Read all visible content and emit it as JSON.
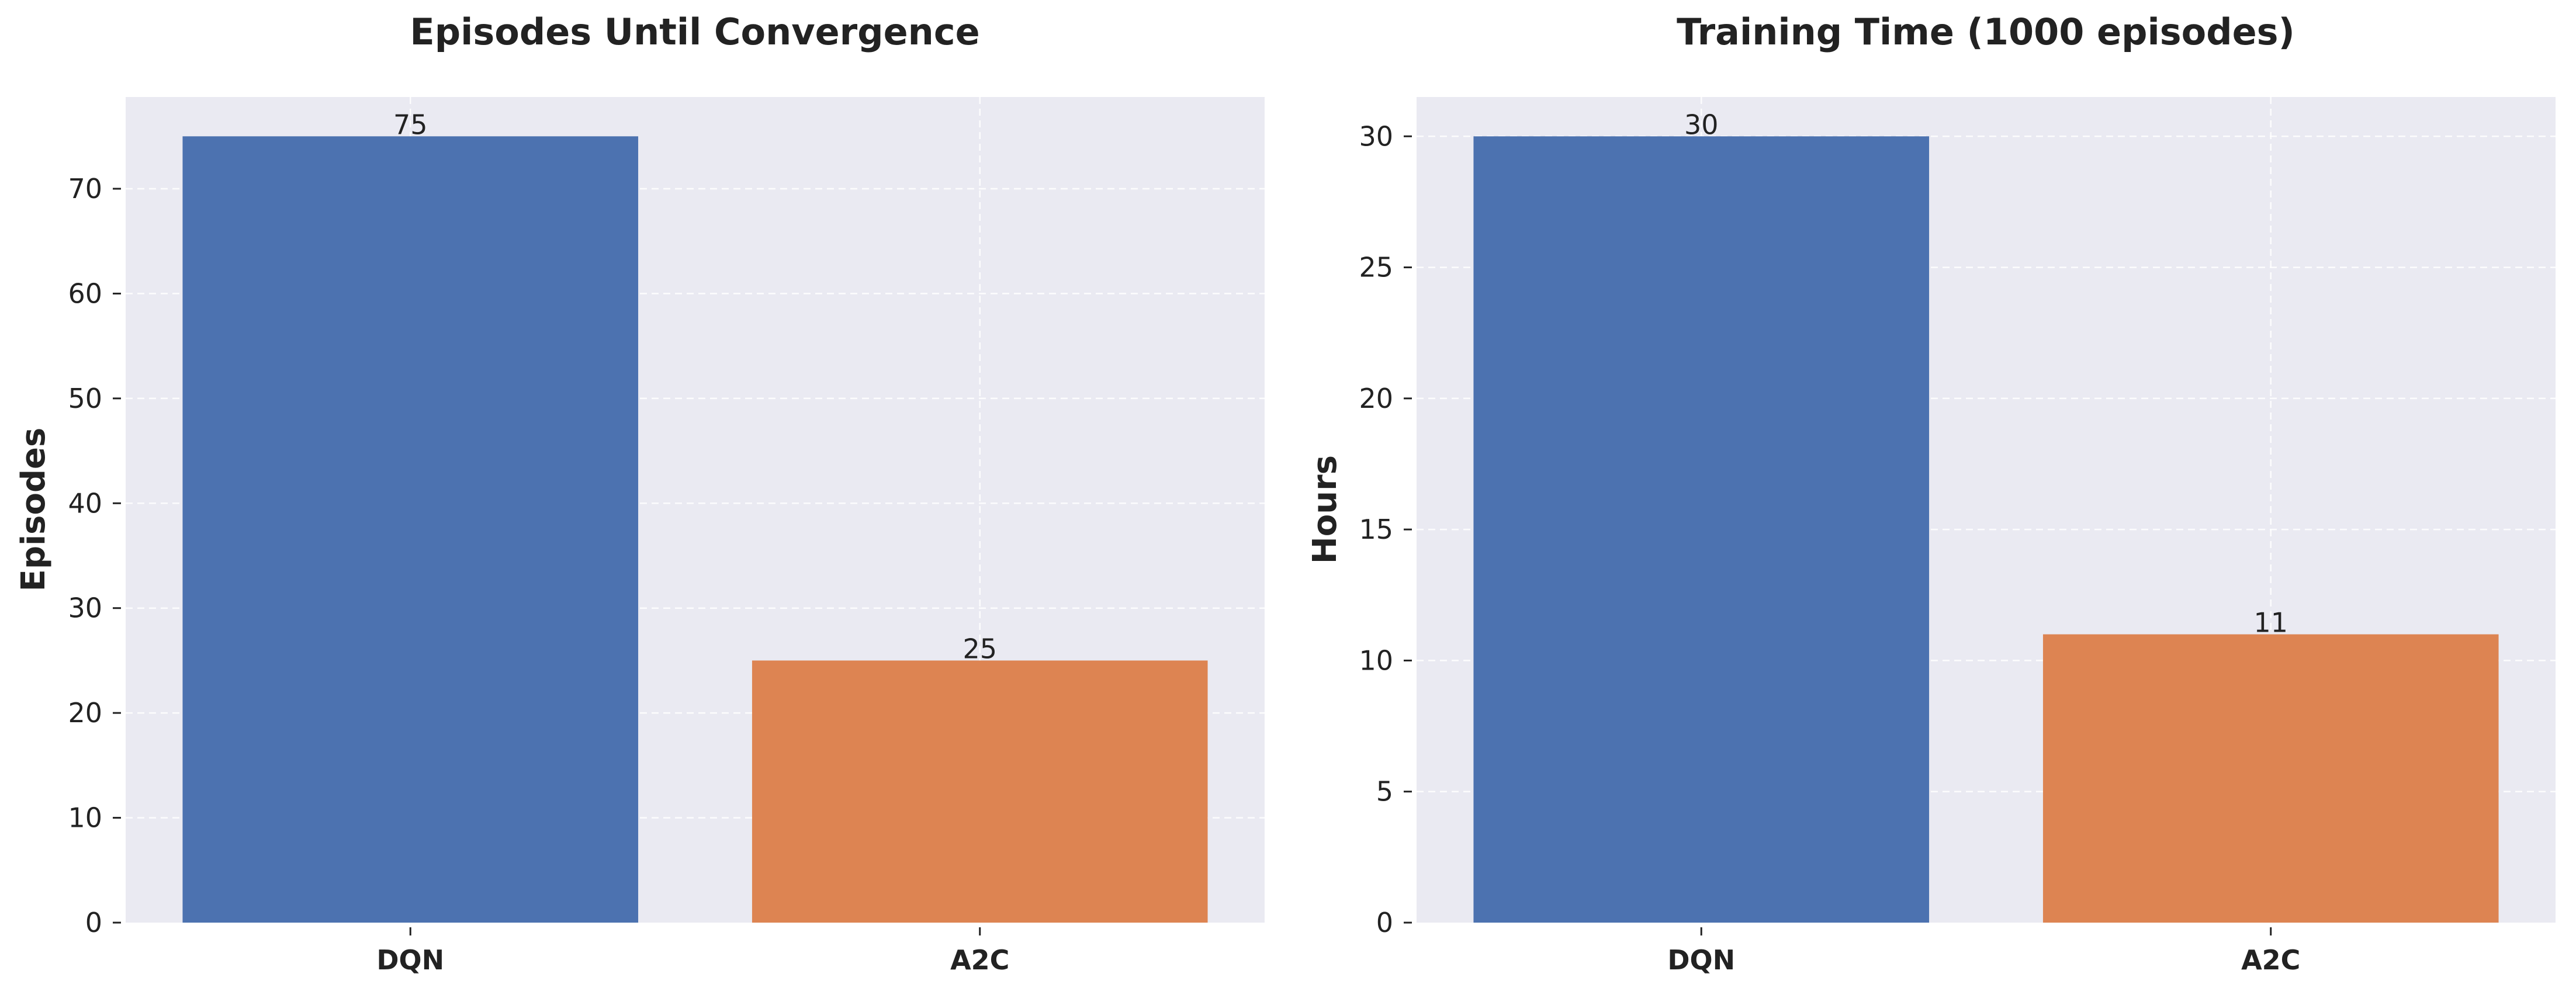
{
  "chart_data": [
    {
      "type": "bar",
      "title": "Episodes Until Convergence",
      "xlabel": "",
      "ylabel": "Episodes",
      "categories": [
        "DQN",
        "A2C"
      ],
      "values": [
        75,
        25
      ],
      "value_labels": [
        "75",
        "25"
      ],
      "colors": [
        "#4c72b0",
        "#dd8452"
      ],
      "ylim": [
        0,
        78.75
      ],
      "yticks": [
        0,
        10,
        20,
        30,
        40,
        50,
        60,
        70
      ],
      "grid": true,
      "background": "#eaeaf2"
    },
    {
      "type": "bar",
      "title": "Training Time (1000 episodes)",
      "xlabel": "",
      "ylabel": "Hours",
      "categories": [
        "DQN",
        "A2C"
      ],
      "values": [
        30,
        11
      ],
      "value_labels": [
        "30",
        "11"
      ],
      "colors": [
        "#4c72b0",
        "#dd8452"
      ],
      "ylim": [
        0,
        31.5
      ],
      "yticks": [
        0,
        5,
        10,
        15,
        20,
        25,
        30
      ],
      "grid": true,
      "background": "#eaeaf2"
    }
  ]
}
